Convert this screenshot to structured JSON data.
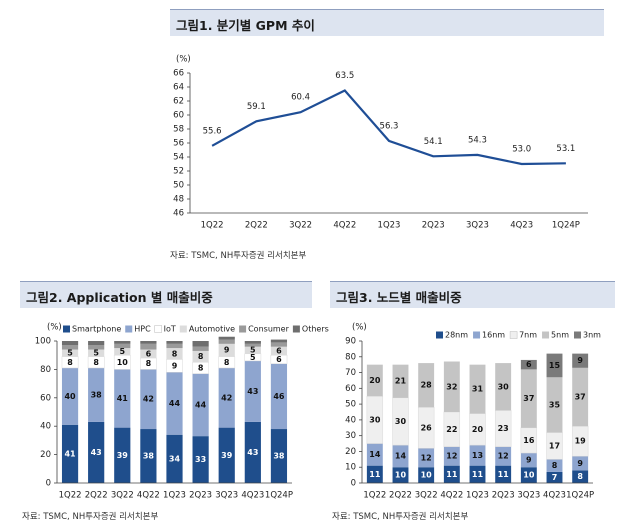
{
  "panels": {
    "fig1": {
      "title": "그림1. 분기별 GPM 추이",
      "source": "자료: TSMC, NH투자증권 리서치본부"
    },
    "fig2": {
      "title": "그림2. Application 별 매출비중",
      "source": "자료: TSMC, NH투자증권 리서치본부"
    },
    "fig3": {
      "title": "그림3. 노드별 매출비중",
      "source": "자료: TSMC, NH투자증권 리서치본부"
    }
  },
  "chart_data": [
    {
      "type": "line",
      "title": "그림1. 분기별 GPM 추이",
      "unit": "(%)",
      "categories": [
        "1Q22",
        "2Q22",
        "3Q22",
        "4Q22",
        "1Q23",
        "2Q23",
        "3Q23",
        "4Q23",
        "1Q24P"
      ],
      "values": [
        55.6,
        59.1,
        60.4,
        63.5,
        56.3,
        54.1,
        54.3,
        53.0,
        53.1
      ],
      "value_labels": [
        "55.6",
        "59.1",
        "60.4",
        "63.5",
        "56.3",
        "54.1",
        "54.3",
        "53.0",
        "53.1"
      ],
      "ylim": [
        46,
        66
      ],
      "yticks": [
        46,
        48,
        50,
        52,
        54,
        56,
        58,
        60,
        62,
        64,
        66
      ],
      "color": "#1f4e96"
    },
    {
      "type": "bar",
      "stacked": true,
      "title": "그림2. Application 별 매출비중",
      "unit": "(%)",
      "categories": [
        "1Q22",
        "2Q22",
        "3Q22",
        "4Q22",
        "1Q23",
        "2Q23",
        "3Q23",
        "4Q23",
        "1Q24P"
      ],
      "ylim": [
        0,
        100
      ],
      "yticks": [
        0,
        20,
        40,
        60,
        80,
        100
      ],
      "legend_position": "top",
      "series": [
        {
          "name": "Smartphone",
          "color": "#1f4e8c",
          "text_color": "#ffffff",
          "values": [
            41,
            43,
            39,
            38,
            34,
            33,
            39,
            43,
            38
          ],
          "labels": [
            "41",
            "43",
            "39",
            "38",
            "34",
            "33",
            "39",
            "43",
            "38"
          ]
        },
        {
          "name": "HPC",
          "color": "#8ea5cf",
          "text_color": "#111111",
          "values": [
            40,
            38,
            41,
            42,
            44,
            44,
            42,
            43,
            46
          ],
          "labels": [
            "40",
            "38",
            "41",
            "42",
            "44",
            "44",
            "42",
            "43",
            "46"
          ]
        },
        {
          "name": "IoT",
          "color": "#ffffff",
          "text_color": "#111111",
          "values": [
            8,
            8,
            10,
            8,
            9,
            8,
            8,
            5,
            6
          ],
          "labels": [
            "8",
            "8",
            "10",
            "8",
            "9",
            "8",
            "8",
            "5",
            "6"
          ]
        },
        {
          "name": "Automotive",
          "color": "#dcdcdc",
          "text_color": "#111111",
          "values": [
            5,
            5,
            5,
            6,
            8,
            8,
            9,
            5,
            6
          ],
          "labels": [
            "5",
            "5",
            "5",
            "6",
            "8",
            "8",
            "9",
            "5",
            "6"
          ]
        },
        {
          "name": "Consumer",
          "color": "#9a9a9a",
          "text_color": "#111111",
          "values": [
            3,
            3,
            3,
            4,
            3,
            3,
            3,
            2,
            3
          ],
          "labels": [
            "",
            "",
            "",
            "",
            "",
            "",
            "",
            "",
            ""
          ]
        },
        {
          "name": "Others",
          "color": "#6e6e6e",
          "text_color": "#111111",
          "values": [
            3,
            3,
            2,
            2,
            2,
            4,
            2,
            2,
            2
          ],
          "labels": [
            "",
            "",
            "",
            "",
            "",
            "",
            "",
            "",
            ""
          ]
        }
      ]
    },
    {
      "type": "bar",
      "stacked": true,
      "title": "그림3. 노드별 매출비중",
      "unit": "(%)",
      "categories": [
        "1Q22",
        "2Q22",
        "3Q22",
        "4Q22",
        "1Q23",
        "2Q23",
        "3Q23",
        "4Q23",
        "1Q24P"
      ],
      "ylim": [
        0,
        90
      ],
      "yticks": [
        0,
        10,
        20,
        30,
        40,
        50,
        60,
        70,
        80,
        90
      ],
      "legend_position": "top",
      "series": [
        {
          "name": "28nm",
          "color": "#1f4e8c",
          "text_color": "#ffffff",
          "values": [
            11,
            10,
            10,
            11,
            11,
            11,
            10,
            7,
            8
          ],
          "labels": [
            "11",
            "10",
            "10",
            "11",
            "11",
            "11",
            "10",
            "7",
            "8"
          ]
        },
        {
          "name": "16nm",
          "color": "#8ea5cf",
          "text_color": "#111111",
          "values": [
            14,
            14,
            12,
            12,
            13,
            12,
            9,
            8,
            9
          ],
          "labels": [
            "14",
            "14",
            "12",
            "12",
            "13",
            "12",
            "9",
            "8",
            "9"
          ]
        },
        {
          "name": "7nm",
          "color": "#efefef",
          "text_color": "#111111",
          "values": [
            30,
            30,
            26,
            22,
            20,
            23,
            16,
            17,
            19
          ],
          "labels": [
            "30",
            "30",
            "26",
            "22",
            "20",
            "23",
            "16",
            "17",
            "19"
          ]
        },
        {
          "name": "5nm",
          "color": "#c4c4c4",
          "text_color": "#111111",
          "values": [
            20,
            21,
            28,
            32,
            31,
            30,
            37,
            35,
            37
          ],
          "labels": [
            "20",
            "21",
            "28",
            "32",
            "31",
            "30",
            "37",
            "35",
            "37"
          ]
        },
        {
          "name": "3nm",
          "color": "#7a7a7a",
          "text_color": "#111111",
          "values": [
            0,
            0,
            0,
            0,
            0,
            0,
            6,
            15,
            9
          ],
          "labels": [
            "",
            "",
            "",
            "",
            "",
            "",
            "6",
            "15",
            "9"
          ]
        }
      ]
    }
  ]
}
